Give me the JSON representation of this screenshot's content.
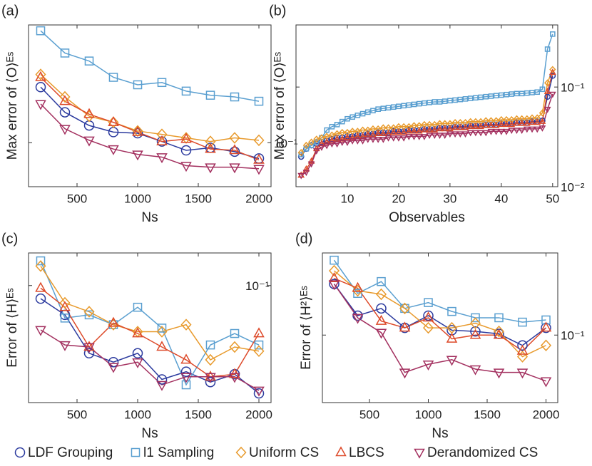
{
  "chart_data": [
    {
      "type": "line",
      "panel_label": "(a)",
      "x_label": "Ns",
      "y_label": "Max error of ⟨O⟩ᴱˢ",
      "log_y": true,
      "x": [
        200,
        400,
        600,
        800,
        1000,
        1200,
        1400,
        1600,
        1800,
        2000
      ],
      "xlim": [
        100,
        2100
      ],
      "xticks": [
        500,
        1000,
        1500,
        2000
      ],
      "ylim": [
        0.07,
        0.26
      ],
      "yticks": [
        {
          "value": 0.1,
          "label": "10⁻¹"
        }
      ],
      "series": [
        {
          "name": "LDF Grouping",
          "color": "#2b3a9e",
          "marker": "circle",
          "values": [
            0.157,
            0.128,
            0.115,
            0.109,
            0.108,
            0.101,
            0.094,
            0.096,
            0.093,
            0.088
          ]
        },
        {
          "name": "l1 Sampling",
          "color": "#5a9fd0",
          "marker": "square",
          "values": [
            0.248,
            0.207,
            0.194,
            0.17,
            0.16,
            0.163,
            0.152,
            0.147,
            0.145,
            0.14
          ]
        },
        {
          "name": "Uniform CS",
          "color": "#e89a2c",
          "marker": "diamond",
          "values": [
            0.174,
            0.145,
            0.124,
            0.118,
            0.11,
            0.107,
            0.104,
            0.101,
            0.104,
            0.102
          ]
        },
        {
          "name": "LBCS",
          "color": "#dd4a2a",
          "marker": "triangle-up",
          "values": [
            0.17,
            0.14,
            0.126,
            0.118,
            0.109,
            0.101,
            0.103,
            0.095,
            0.094,
            0.087
          ]
        },
        {
          "name": "Derandomized CS",
          "color": "#a3305f",
          "marker": "triangle-down",
          "values": [
            0.137,
            0.112,
            0.102,
            0.095,
            0.091,
            0.089,
            0.083,
            0.082,
            0.082,
            0.081
          ]
        }
      ]
    },
    {
      "type": "line",
      "panel_label": "(b)",
      "x_label": "Observables",
      "y_label": "Max error of ⟨O⟩ᴱˢ",
      "log_y": true,
      "x": [
        1,
        2,
        3,
        4,
        5,
        6,
        7,
        8,
        9,
        10,
        11,
        12,
        13,
        14,
        15,
        16,
        17,
        18,
        19,
        20,
        21,
        22,
        23,
        24,
        25,
        26,
        27,
        28,
        29,
        30,
        31,
        32,
        33,
        34,
        35,
        36,
        37,
        38,
        39,
        40,
        41,
        42,
        43,
        44,
        45,
        46,
        47,
        48,
        49,
        50
      ],
      "xlim": [
        0,
        51
      ],
      "xticks": [
        10,
        20,
        30,
        40,
        50
      ],
      "ylim": [
        0.01,
        0.42
      ],
      "yticks": [
        {
          "value": 0.01,
          "label": "10⁻²"
        },
        {
          "value": 0.1,
          "label": "10⁻¹"
        }
      ],
      "series": [
        {
          "name": "LDF Grouping",
          "color": "#2b3a9e",
          "marker": "circle",
          "values": [
            0.02,
            0.024,
            0.026,
            0.027,
            0.028,
            0.029,
            0.03,
            0.031,
            0.031,
            0.032,
            0.032,
            0.033,
            0.033,
            0.034,
            0.034,
            0.035,
            0.035,
            0.035,
            0.036,
            0.036,
            0.036,
            0.037,
            0.037,
            0.037,
            0.038,
            0.038,
            0.038,
            0.039,
            0.039,
            0.039,
            0.04,
            0.04,
            0.04,
            0.041,
            0.041,
            0.041,
            0.042,
            0.042,
            0.042,
            0.043,
            0.043,
            0.043,
            0.044,
            0.044,
            0.044,
            0.045,
            0.045,
            0.046,
            0.08,
            0.13
          ]
        },
        {
          "name": "l1 Sampling",
          "color": "#5a9fd0",
          "marker": "square",
          "values": [
            0.021,
            0.024,
            0.026,
            0.028,
            0.031,
            0.037,
            0.04,
            0.042,
            0.045,
            0.048,
            0.05,
            0.052,
            0.054,
            0.056,
            0.058,
            0.06,
            0.061,
            0.062,
            0.063,
            0.064,
            0.065,
            0.066,
            0.067,
            0.068,
            0.069,
            0.07,
            0.071,
            0.071,
            0.072,
            0.073,
            0.074,
            0.075,
            0.076,
            0.077,
            0.078,
            0.079,
            0.08,
            0.081,
            0.082,
            0.083,
            0.084,
            0.085,
            0.086,
            0.086,
            0.087,
            0.088,
            0.089,
            0.095,
            0.24,
            0.34
          ]
        },
        {
          "name": "Uniform CS",
          "color": "#e89a2c",
          "marker": "diamond",
          "values": [
            0.022,
            0.026,
            0.028,
            0.03,
            0.031,
            0.032,
            0.033,
            0.034,
            0.035,
            0.035,
            0.036,
            0.036,
            0.037,
            0.037,
            0.038,
            0.038,
            0.039,
            0.039,
            0.039,
            0.04,
            0.04,
            0.04,
            0.041,
            0.041,
            0.042,
            0.042,
            0.042,
            0.043,
            0.043,
            0.043,
            0.044,
            0.044,
            0.044,
            0.045,
            0.045,
            0.045,
            0.046,
            0.046,
            0.046,
            0.047,
            0.047,
            0.047,
            0.048,
            0.048,
            0.048,
            0.049,
            0.049,
            0.055,
            0.11,
            0.15
          ]
        },
        {
          "name": "LBCS",
          "color": "#dd4a2a",
          "marker": "triangle-up",
          "values": [
            0.013,
            0.015,
            0.018,
            0.024,
            0.027,
            0.028,
            0.029,
            0.03,
            0.03,
            0.031,
            0.031,
            0.032,
            0.032,
            0.033,
            0.033,
            0.034,
            0.034,
            0.034,
            0.035,
            0.035,
            0.035,
            0.036,
            0.036,
            0.036,
            0.037,
            0.037,
            0.037,
            0.038,
            0.038,
            0.038,
            0.039,
            0.039,
            0.039,
            0.04,
            0.04,
            0.04,
            0.041,
            0.041,
            0.041,
            0.042,
            0.042,
            0.042,
            0.043,
            0.043,
            0.043,
            0.044,
            0.044,
            0.045,
            0.09,
            0.14
          ]
        },
        {
          "name": "Derandomized CS",
          "color": "#a3305f",
          "marker": "triangle-down",
          "values": [
            0.013,
            0.014,
            0.017,
            0.023,
            0.025,
            0.026,
            0.027,
            0.027,
            0.028,
            0.028,
            0.029,
            0.029,
            0.029,
            0.03,
            0.03,
            0.03,
            0.03,
            0.031,
            0.031,
            0.031,
            0.031,
            0.032,
            0.032,
            0.032,
            0.032,
            0.033,
            0.033,
            0.033,
            0.033,
            0.034,
            0.034,
            0.034,
            0.034,
            0.035,
            0.035,
            0.035,
            0.035,
            0.036,
            0.036,
            0.036,
            0.036,
            0.037,
            0.037,
            0.037,
            0.038,
            0.038,
            0.038,
            0.039,
            0.06,
            0.085
          ]
        }
      ]
    },
    {
      "type": "line",
      "panel_label": "(c)",
      "x_label": "Ns",
      "y_label": "Error of ⟨H⟩ᴱˢ",
      "log_y": true,
      "x": [
        200,
        400,
        600,
        800,
        1000,
        1200,
        1400,
        1600,
        1800,
        2000
      ],
      "xlim": [
        100,
        2100
      ],
      "xticks": [
        500,
        1000,
        1500,
        2000
      ],
      "ylim": [
        0.039,
        0.13
      ],
      "yticks": [
        {
          "value": 0.1,
          "label": "10⁻¹"
        }
      ],
      "series": [
        {
          "name": "LDF Grouping",
          "color": "#2b3a9e",
          "marker": "circle",
          "values": [
            0.09,
            0.079,
            0.058,
            0.054,
            0.058,
            0.047,
            0.05,
            0.046,
            0.049,
            0.042
          ]
        },
        {
          "name": "l1 Sampling",
          "color": "#5a9fd0",
          "marker": "square",
          "values": [
            0.122,
            0.077,
            0.079,
            0.073,
            0.084,
            0.071,
            0.045,
            0.062,
            0.068,
            0.062
          ]
        },
        {
          "name": "Uniform CS",
          "color": "#e89a2c",
          "marker": "diamond",
          "values": [
            0.117,
            0.087,
            0.081,
            0.073,
            0.069,
            0.069,
            0.073,
            0.055,
            0.061,
            0.059
          ]
        },
        {
          "name": "LBCS",
          "color": "#dd4a2a",
          "marker": "triangle-up",
          "values": [
            0.098,
            0.084,
            0.061,
            0.074,
            0.068,
            0.061,
            0.055,
            0.048,
            0.049,
            0.068
          ]
        },
        {
          "name": "Derandomized CS",
          "color": "#a3305f",
          "marker": "triangle-down",
          "values": [
            0.07,
            0.062,
            0.061,
            0.052,
            0.054,
            0.045,
            0.048,
            0.048,
            0.048,
            0.043
          ]
        }
      ]
    },
    {
      "type": "line",
      "panel_label": "(d)",
      "x_label": "Ns",
      "y_label": "Error of ⟨H²⟩ᴱˢ",
      "log_y": true,
      "x": [
        200,
        400,
        600,
        800,
        1000,
        1200,
        1400,
        1600,
        1800,
        2000
      ],
      "xlim": [
        100,
        2100
      ],
      "xticks": [
        500,
        1000,
        1500,
        2000
      ],
      "ylim": [
        0.058,
        0.194
      ],
      "yticks": [
        {
          "value": 0.1,
          "label": "10⁻¹"
        }
      ],
      "series": [
        {
          "name": "LDF Grouping",
          "color": "#2b3a9e",
          "marker": "circle",
          "values": [
            0.151,
            0.117,
            0.124,
            0.106,
            0.117,
            0.104,
            0.103,
            0.101,
            0.092,
            0.106
          ]
        },
        {
          "name": "l1 Sampling",
          "color": "#5a9fd0",
          "marker": "square",
          "values": [
            0.183,
            0.14,
            0.154,
            0.124,
            0.13,
            0.121,
            0.115,
            0.115,
            0.111,
            0.113
          ]
        },
        {
          "name": "Uniform CS",
          "color": "#e89a2c",
          "marker": "diamond",
          "values": [
            0.168,
            0.143,
            0.139,
            0.124,
            0.106,
            0.106,
            0.11,
            0.103,
            0.084,
            0.092
          ]
        },
        {
          "name": "LBCS",
          "color": "#dd4a2a",
          "marker": "triangle-up",
          "values": [
            0.158,
            0.146,
            0.112,
            0.106,
            0.115,
            0.097,
            0.1,
            0.1,
            0.088,
            0.106
          ]
        },
        {
          "name": "Derandomized CS",
          "color": "#a3305f",
          "marker": "triangle-down",
          "values": [
            0.151,
            0.115,
            0.102,
            0.074,
            0.079,
            0.082,
            0.076,
            0.074,
            0.074,
            0.069
          ]
        }
      ]
    }
  ]
}
